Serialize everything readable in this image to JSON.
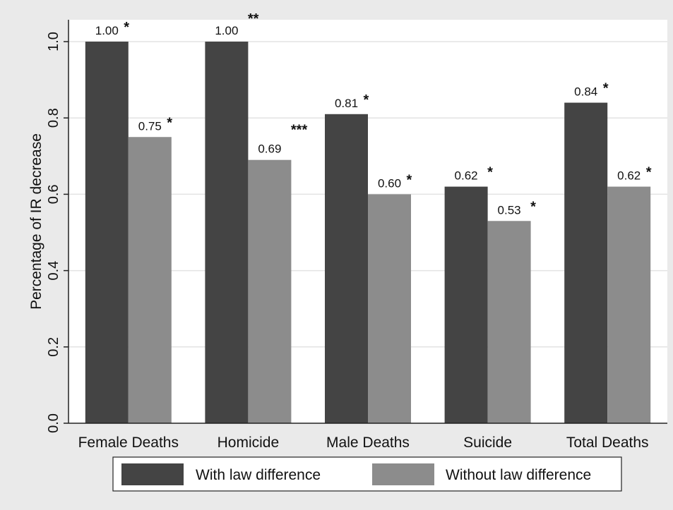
{
  "chart_data": {
    "type": "bar",
    "title": "",
    "xlabel": "",
    "ylabel": "Percentage of IR decrease",
    "ylim": [
      0,
      1.0
    ],
    "yticks": [
      0.0,
      0.2,
      0.4,
      0.6,
      0.8,
      1.0
    ],
    "ytick_labels": [
      "0.0",
      "0.2",
      "0.4",
      "0.6",
      "0.8",
      "1.0"
    ],
    "grid": true,
    "legend_position": "bottom",
    "categories": [
      "Female Deaths",
      "Homicide",
      "Male Deaths",
      "Suicide",
      "Total Deaths"
    ],
    "series": [
      {
        "name": "With law difference",
        "color": "#444444",
        "values": [
          1.0,
          1.0,
          0.81,
          0.62,
          0.84
        ],
        "labels": [
          "1.00",
          "1.00",
          "0.81",
          "0.62",
          "0.84"
        ],
        "significance": [
          "*",
          "**",
          "*",
          "*",
          "*"
        ]
      },
      {
        "name": "Without law difference",
        "color": "#8c8c8c",
        "values": [
          0.75,
          0.69,
          0.6,
          0.53,
          0.62
        ],
        "labels": [
          "0.75",
          "0.69",
          "0.60",
          "0.53",
          "0.62"
        ],
        "significance": [
          "*",
          "***",
          "*",
          "*",
          "*"
        ]
      }
    ]
  }
}
